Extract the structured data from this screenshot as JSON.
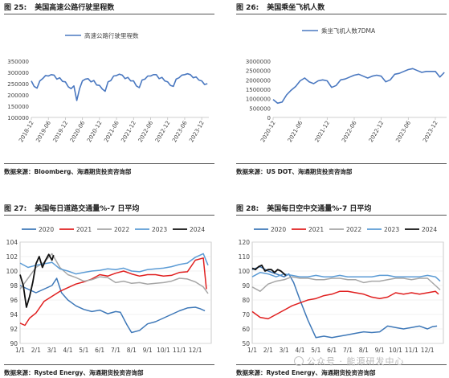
{
  "panels": [
    {
      "fig_no": "图 25:",
      "title": "美国高速公路行驶里程数",
      "source": "数据来源：Bloomberg、海通期货投资咨询部"
    },
    {
      "fig_no": "图 26:",
      "title": "美国乘坐飞机人数",
      "source": "数据来源：US DOT、海通期货投资咨询部"
    },
    {
      "fig_no": "图 27:",
      "title": "美国每日道路交通量%-7 日平均",
      "source": "数据来源：Rysted Energy、海通期货投资咨询部"
    },
    {
      "fig_no": "图 28:",
      "title": "美国每日空中交通量%-7 日平均",
      "source": "数据来源：Rysted Energy、海通期货投资咨询部"
    }
  ],
  "watermark": "公众号 · 能源研发中心",
  "chart_data": [
    {
      "type": "line",
      "title": "",
      "legend": [
        "高速公路行驶里程数"
      ],
      "legend_position": "top-center",
      "ylim": [
        100000,
        350000
      ],
      "y_ticks": [
        "100000",
        "150000",
        "200000",
        "250000",
        "300000",
        "350000"
      ],
      "x_ticks": [
        "2018-12",
        "2019-06",
        "2019-12",
        "2020-06",
        "2020-12",
        "2021-06",
        "2021-12",
        "2022-06",
        "2022-12",
        "2023-06",
        "2023-12"
      ],
      "color": "#4a78c0",
      "series": [
        {
          "name": "高速公路行驶里程数",
          "x": [
            "2018-12",
            "2019-01",
            "2019-02",
            "2019-03",
            "2019-04",
            "2019-05",
            "2019-06",
            "2019-07",
            "2019-08",
            "2019-09",
            "2019-10",
            "2019-11",
            "2019-12",
            "2020-01",
            "2020-02",
            "2020-03",
            "2020-04",
            "2020-05",
            "2020-06",
            "2020-07",
            "2020-08",
            "2020-09",
            "2020-10",
            "2020-11",
            "2020-12",
            "2021-01",
            "2021-02",
            "2021-03",
            "2021-04",
            "2021-05",
            "2021-06",
            "2021-07",
            "2021-08",
            "2021-09",
            "2021-10",
            "2021-11",
            "2021-12",
            "2022-01",
            "2022-02",
            "2022-03",
            "2022-04",
            "2022-05",
            "2022-06",
            "2022-07",
            "2022-08",
            "2022-09",
            "2022-10",
            "2022-11",
            "2022-12",
            "2023-01",
            "2023-02",
            "2023-03",
            "2023-04",
            "2023-05",
            "2023-06",
            "2023-07",
            "2023-08",
            "2023-09",
            "2023-10",
            "2023-11",
            "2023-12",
            "2024-01",
            "2024-02"
          ],
          "values": [
            262000,
            238000,
            230000,
            262000,
            272000,
            286000,
            284000,
            290000,
            288000,
            270000,
            276000,
            260000,
            258000,
            236000,
            228000,
            240000,
            175000,
            228000,
            262000,
            270000,
            272000,
            258000,
            264000,
            244000,
            242000,
            226000,
            216000,
            258000,
            264000,
            284000,
            286000,
            292000,
            288000,
            272000,
            278000,
            262000,
            262000,
            240000,
            232000,
            266000,
            270000,
            284000,
            284000,
            290000,
            290000,
            272000,
            278000,
            262000,
            258000,
            242000,
            238000,
            270000,
            276000,
            288000,
            290000,
            294000,
            290000,
            276000,
            280000,
            266000,
            262000,
            246000,
            250000
          ]
        }
      ]
    },
    {
      "type": "line",
      "title": "",
      "legend": [
        "乘坐飞机人数7DMA"
      ],
      "legend_position": "top-center",
      "ylim": [
        0,
        3000000
      ],
      "y_ticks": [
        "0",
        "500000",
        "1000000",
        "1500000",
        "2000000",
        "2500000",
        "3000000"
      ],
      "x_ticks": [
        "2020-12",
        "2021-06",
        "2021-12",
        "2022-06",
        "2022-12",
        "2023-06",
        "2023-12"
      ],
      "color": "#4a78c0",
      "series": [
        {
          "name": "乘坐飞机人数7DMA",
          "x": [
            "2020-12",
            "2021-01",
            "2021-02",
            "2021-03",
            "2021-04",
            "2021-05",
            "2021-06",
            "2021-07",
            "2021-08",
            "2021-09",
            "2021-10",
            "2021-11",
            "2021-12",
            "2022-01",
            "2022-02",
            "2022-03",
            "2022-04",
            "2022-05",
            "2022-06",
            "2022-07",
            "2022-08",
            "2022-09",
            "2022-10",
            "2022-11",
            "2022-12",
            "2023-01",
            "2023-02",
            "2023-03",
            "2023-04",
            "2023-05",
            "2023-06",
            "2023-07",
            "2023-08",
            "2023-09",
            "2023-10",
            "2023-11",
            "2023-12",
            "2024-01",
            "2024-02"
          ],
          "values": [
            950000,
            760000,
            820000,
            1200000,
            1450000,
            1650000,
            1950000,
            2100000,
            1900000,
            1800000,
            1950000,
            2000000,
            1950000,
            1600000,
            1700000,
            2000000,
            2050000,
            2150000,
            2250000,
            2300000,
            2200000,
            2100000,
            2200000,
            2250000,
            2200000,
            1900000,
            2000000,
            2300000,
            2350000,
            2450000,
            2550000,
            2600000,
            2500000,
            2400000,
            2450000,
            2450000,
            2450000,
            2150000,
            2400000
          ]
        }
      ]
    },
    {
      "type": "line",
      "title": "",
      "legend_position": "top",
      "ylim": [
        90,
        104
      ],
      "y_ticks": [
        "90",
        "92",
        "94",
        "96",
        "98",
        "100",
        "102",
        "104"
      ],
      "x_ticks": [
        "1/1",
        "2/1",
        "3/1",
        "4/1",
        "5/1",
        "6/1",
        "7/1",
        "8/1",
        "9/1",
        "10/1",
        "11/1",
        "12/1"
      ],
      "series": [
        {
          "name": "2020",
          "color": "#3e78b8",
          "x": [
            1,
            2,
            3,
            3.3,
            3.6,
            4,
            4.5,
            5,
            5.5,
            6,
            6.5,
            7,
            7.3,
            7.7,
            8,
            8.5,
            9,
            9.5,
            10,
            10.5,
            11,
            11.5,
            12,
            12.3,
            12.6
          ],
          "values": [
            98,
            97,
            98,
            99,
            97,
            96,
            95.2,
            94.7,
            94.4,
            94.6,
            94.1,
            94.4,
            94.3,
            92.6,
            91.5,
            91.8,
            92.7,
            93,
            93.5,
            94,
            94.5,
            94.9,
            95,
            94.8,
            94.5
          ]
        },
        {
          "name": "2021",
          "color": "#e01f1f",
          "x": [
            1,
            1.3,
            1.6,
            2,
            2.5,
            3,
            3.5,
            4,
            4.5,
            5,
            5.5,
            6,
            6.5,
            7,
            7.5,
            8,
            8.5,
            9,
            9.5,
            10,
            10.5,
            11,
            11.5,
            12,
            12.5,
            12.7
          ],
          "values": [
            92.8,
            92.5,
            93.5,
            94.2,
            95.8,
            96.5,
            97.2,
            97.7,
            98.2,
            98.5,
            98.9,
            99.5,
            99.3,
            99.7,
            100,
            99.6,
            99.3,
            99.5,
            99.5,
            99.3,
            99.4,
            99.8,
            99.9,
            101.5,
            101.8,
            97.5
          ]
        },
        {
          "name": "2022",
          "color": "#a6a6a6",
          "x": [
            1,
            1.5,
            2,
            2.5,
            3,
            3.5,
            4,
            4.5,
            5,
            5.5,
            6,
            6.5,
            7,
            7.5,
            8,
            8.5,
            9,
            9.5,
            10,
            10.5,
            11,
            11.5,
            12,
            12.5,
            12.8
          ],
          "values": [
            97.5,
            99,
            100.5,
            101.2,
            102.4,
            100.5,
            99.5,
            99.1,
            98.6,
            98.8,
            99.2,
            99.1,
            98.4,
            98.6,
            98.3,
            98.4,
            98.2,
            98.3,
            98.4,
            98.6,
            99,
            98.9,
            98.5,
            97.8,
            96.9
          ]
        },
        {
          "name": "2023",
          "color": "#5b9bd5",
          "x": [
            1,
            1.5,
            2,
            2.5,
            3,
            3.5,
            4,
            4.5,
            5,
            5.5,
            6,
            6.5,
            7,
            7.5,
            8,
            8.5,
            9,
            9.5,
            10,
            10.5,
            11,
            11.5,
            12,
            12.5,
            12.8
          ],
          "values": [
            101.1,
            100.5,
            100.8,
            101,
            101.2,
            100.3,
            100,
            99.6,
            99.8,
            100,
            100.1,
            100.3,
            100.2,
            100.4,
            100,
            99.9,
            100.2,
            100.3,
            100.4,
            100.6,
            100.9,
            101.1,
            101.9,
            102.4,
            100.8
          ]
        },
        {
          "name": "2024",
          "color": "#111111",
          "x": [
            1,
            1.2,
            1.4,
            1.6,
            1.8,
            2,
            2.2,
            2.4,
            2.6,
            2.8,
            3,
            3.1
          ],
          "values": [
            99.5,
            98,
            95,
            96.5,
            98.5,
            101,
            102,
            100.5,
            101.5,
            102.3,
            101.5,
            102.2
          ]
        }
      ]
    },
    {
      "type": "line",
      "title": "",
      "legend_position": "top",
      "ylim": [
        50,
        120
      ],
      "y_ticks": [
        "50",
        "60",
        "70",
        "80",
        "90",
        "100",
        "110",
        "120"
      ],
      "x_ticks": [
        "1/1",
        "2/1",
        "3/1",
        "4/1",
        "5/1",
        "6/1",
        "7/1",
        "8/1",
        "9/1",
        "10/1",
        "11/1",
        "12/1"
      ],
      "series": [
        {
          "name": "2020",
          "color": "#3e78b8",
          "x": [
            1,
            1.5,
            2,
            2.5,
            3,
            3.3,
            3.6,
            4,
            4.5,
            5,
            5.5,
            6,
            6.5,
            7,
            7.5,
            8,
            8.5,
            9,
            9.5,
            10,
            10.5,
            11,
            11.5,
            12,
            12.3,
            12.6
          ],
          "values": [
            101,
            103,
            100,
            98,
            96,
            98,
            92,
            80,
            66,
            54,
            55,
            54,
            55,
            56,
            57,
            58,
            57.5,
            58,
            62,
            61,
            60,
            61,
            62,
            60,
            61.5,
            62
          ]
        },
        {
          "name": "2021",
          "color": "#e01f1f",
          "x": [
            1,
            1.5,
            2,
            2.5,
            3,
            3.5,
            4,
            4.5,
            5,
            5.5,
            6,
            6.5,
            7,
            7.5,
            8,
            8.5,
            9,
            9.5,
            10,
            10.5,
            11,
            11.5,
            12,
            12.5,
            12.7
          ],
          "values": [
            72,
            68,
            67,
            70,
            73,
            76,
            78,
            80,
            81,
            83,
            84,
            86,
            86,
            85,
            84,
            82,
            81,
            82,
            85,
            84,
            85,
            84,
            85,
            86,
            84
          ]
        },
        {
          "name": "2022",
          "color": "#a6a6a6",
          "x": [
            1,
            1.5,
            2,
            2.5,
            3,
            3.5,
            4,
            4.5,
            5,
            5.5,
            6,
            6.5,
            7,
            7.5,
            8,
            8.5,
            9,
            9.5,
            10,
            10.5,
            11,
            11.5,
            12,
            12.5,
            12.8
          ],
          "values": [
            89,
            86,
            91,
            93,
            94,
            96,
            95,
            95,
            94,
            94,
            95,
            95,
            94,
            94,
            92,
            93,
            93,
            94,
            95,
            95,
            94,
            95,
            95,
            90,
            87
          ]
        },
        {
          "name": "2023",
          "color": "#5b9bd5",
          "x": [
            1,
            1.5,
            2,
            2.5,
            3,
            3.5,
            4,
            4.5,
            5,
            5.5,
            6,
            6.5,
            7,
            7.5,
            8,
            8.5,
            9,
            9.5,
            10,
            10.5,
            11,
            11.5,
            12,
            12.5,
            12.8
          ],
          "values": [
            96,
            99,
            98,
            96,
            98,
            97,
            96,
            96,
            97,
            96,
            96,
            97,
            96,
            96,
            96,
            96,
            97,
            97,
            96,
            96,
            96,
            96,
            97,
            96,
            93
          ]
        },
        {
          "name": "2024",
          "color": "#111111",
          "x": [
            1,
            1.2,
            1.4,
            1.6,
            1.8,
            2,
            2.2,
            2.4,
            2.6,
            2.8,
            3,
            3.1
          ],
          "values": [
            102,
            101,
            103,
            104,
            100,
            101,
            101,
            99,
            101,
            100,
            98,
            97
          ]
        }
      ]
    }
  ]
}
